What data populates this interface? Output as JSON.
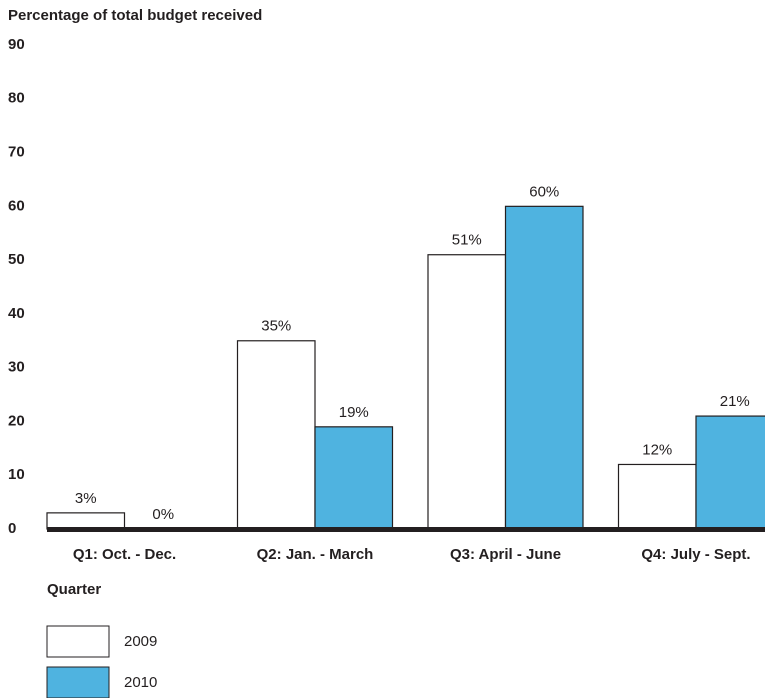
{
  "chart_data": {
    "type": "bar",
    "title": "Percentage of total budget received",
    "x_label": "Quarter",
    "categories": [
      "Q1: Oct. - Dec.",
      "Q2: Jan. - March",
      "Q3: April - June",
      "Q4: July - Sept."
    ],
    "series": [
      {
        "name": "2009",
        "color": "#ffffff",
        "values": [
          3,
          35,
          51,
          12
        ],
        "value_labels": [
          "3%",
          "35%",
          "51%",
          "12%"
        ]
      },
      {
        "name": "2010",
        "color": "#4fb3e0",
        "values": [
          0,
          19,
          60,
          21
        ],
        "value_labels": [
          "0%",
          "19%",
          "60%",
          "21%"
        ]
      }
    ],
    "ylim": [
      0,
      90
    ],
    "yticks": [
      0,
      10,
      20,
      30,
      40,
      50,
      60,
      70,
      80,
      90
    ],
    "grid": false
  }
}
